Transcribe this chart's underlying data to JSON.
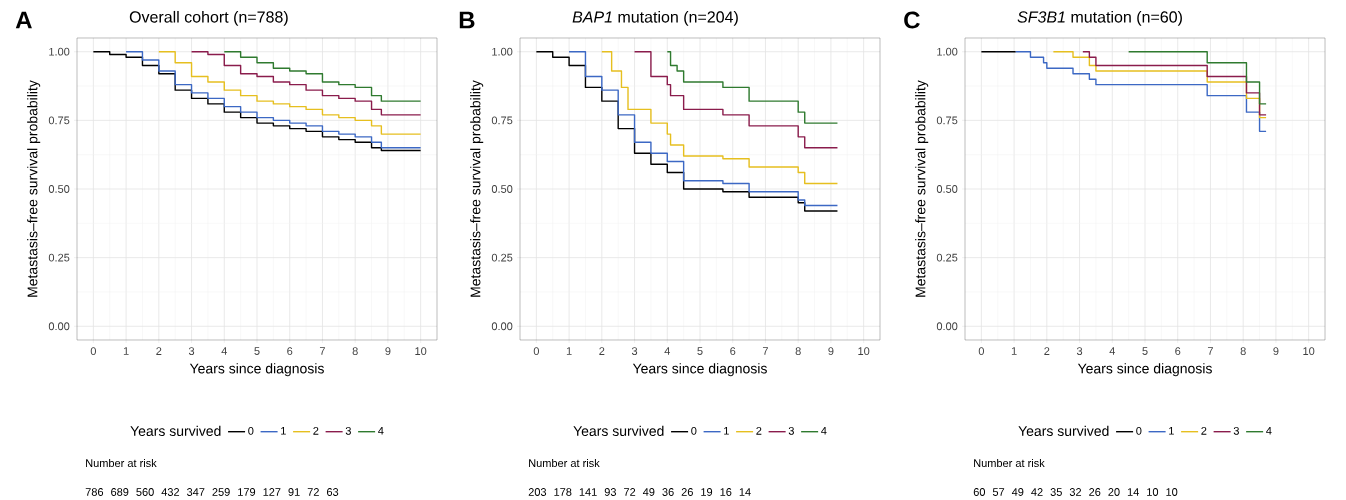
{
  "chart_data": [
    {
      "type": "step",
      "title": "Overall cohort (n=788)",
      "xlabel": "Years since diagnosis",
      "ylabel": "Metastasis–free survival probability",
      "legend_title": "Years survived",
      "legend": "bottom",
      "grid": true,
      "xlim": [
        -0.5,
        10.5
      ],
      "ylim": [
        -0.05,
        1.05
      ],
      "xticks": [
        0,
        1,
        2,
        3,
        4,
        5,
        6,
        7,
        8,
        9,
        10
      ],
      "yticks": [
        {
          "value": 0,
          "label": "0.00"
        },
        {
          "value": 0.25,
          "label": "0.25"
        },
        {
          "value": 0.5,
          "label": "0.50"
        },
        {
          "value": 0.75,
          "label": "0.75"
        },
        {
          "value": 1,
          "label": "1.00"
        }
      ],
      "annotations": [
        "A",
        "Number at risk",
        "786 689 560 432 347 259 179 127 91 72 63"
      ],
      "series": [
        {
          "name": "0",
          "color": "#000000",
          "x": [
            0,
            0.5,
            1,
            1.5,
            2,
            2.5,
            3,
            3.5,
            4,
            4.5,
            5,
            5.5,
            6,
            6.5,
            7,
            7.5,
            8,
            8.5,
            8.8,
            10
          ],
          "values": [
            1,
            0.99,
            0.98,
            0.95,
            0.92,
            0.86,
            0.83,
            0.81,
            0.78,
            0.76,
            0.74,
            0.73,
            0.72,
            0.71,
            0.69,
            0.68,
            0.67,
            0.65,
            0.64,
            0.64
          ]
        },
        {
          "name": "1",
          "color": "#3c68c4",
          "x": [
            1,
            1.5,
            2,
            2.5,
            3,
            3.5,
            4,
            4.5,
            5,
            5.5,
            6,
            6.5,
            7,
            7.5,
            8,
            8.5,
            8.8,
            10
          ],
          "values": [
            1,
            0.97,
            0.93,
            0.88,
            0.85,
            0.83,
            0.8,
            0.78,
            0.76,
            0.75,
            0.74,
            0.73,
            0.71,
            0.7,
            0.69,
            0.67,
            0.65,
            0.65
          ]
        },
        {
          "name": "2",
          "color": "#e6bf1f",
          "x": [
            2,
            2.5,
            3,
            3.5,
            4,
            4.5,
            5,
            5.5,
            6,
            6.5,
            7,
            7.5,
            8,
            8.5,
            8.8,
            10
          ],
          "values": [
            1,
            0.96,
            0.91,
            0.89,
            0.86,
            0.84,
            0.82,
            0.81,
            0.8,
            0.79,
            0.77,
            0.76,
            0.75,
            0.73,
            0.7,
            0.7
          ]
        },
        {
          "name": "3",
          "color": "#8a1c4c",
          "x": [
            3,
            3.5,
            4,
            4.5,
            5,
            5.5,
            6,
            6.5,
            7,
            7.5,
            8,
            8.5,
            8.8,
            10
          ],
          "values": [
            1,
            0.99,
            0.95,
            0.92,
            0.91,
            0.89,
            0.88,
            0.86,
            0.84,
            0.83,
            0.82,
            0.79,
            0.77,
            0.77
          ]
        },
        {
          "name": "4",
          "color": "#2f7a2f",
          "x": [
            4,
            4.5,
            5,
            5.5,
            6,
            6.5,
            7,
            7.5,
            8,
            8.5,
            8.8,
            10
          ],
          "values": [
            1,
            0.98,
            0.96,
            0.94,
            0.93,
            0.92,
            0.89,
            0.88,
            0.87,
            0.84,
            0.82,
            0.82
          ]
        }
      ]
    },
    {
      "type": "step",
      "title": "*BAP1* mutation (n=204)",
      "xlabel": "Years since diagnosis",
      "ylabel": "Metastasis–free survival probability",
      "legend_title": "Years survived",
      "legend": "bottom",
      "grid": true,
      "xlim": [
        -0.5,
        10.5
      ],
      "ylim": [
        -0.05,
        1.05
      ],
      "xticks": [
        0,
        1,
        2,
        3,
        4,
        5,
        6,
        7,
        8,
        9,
        10
      ],
      "yticks": [
        {
          "value": 0,
          "label": "0.00"
        },
        {
          "value": 0.25,
          "label": "0.25"
        },
        {
          "value": 0.5,
          "label": "0.50"
        },
        {
          "value": 0.75,
          "label": "0.75"
        },
        {
          "value": 1,
          "label": "1.00"
        }
      ],
      "annotations": [
        "B",
        "Number at risk",
        "203 178 141 93 72 49 36 26 19 16 14"
      ],
      "series": [
        {
          "name": "0",
          "color": "#000000",
          "x": [
            0,
            0.5,
            1,
            1.5,
            2,
            2.5,
            3,
            3.5,
            4,
            4.5,
            5.7,
            6.5,
            8,
            8.2,
            9.2
          ],
          "values": [
            1,
            0.98,
            0.95,
            0.87,
            0.82,
            0.72,
            0.63,
            0.59,
            0.56,
            0.5,
            0.49,
            0.47,
            0.45,
            0.42,
            0.42
          ]
        },
        {
          "name": "1",
          "color": "#3c68c4",
          "x": [
            1,
            1.5,
            2,
            2.5,
            3,
            3.5,
            4,
            4.5,
            5.7,
            6.5,
            8,
            8.2,
            9.2
          ],
          "values": [
            1,
            0.91,
            0.86,
            0.77,
            0.67,
            0.63,
            0.6,
            0.53,
            0.52,
            0.49,
            0.46,
            0.44,
            0.44
          ]
        },
        {
          "name": "2",
          "color": "#e6bf1f",
          "x": [
            2,
            2.3,
            2.6,
            2.8,
            3.5,
            4,
            4.1,
            4.5,
            5.7,
            6.5,
            8,
            8.2,
            9.2
          ],
          "values": [
            1,
            0.93,
            0.87,
            0.79,
            0.74,
            0.7,
            0.66,
            0.62,
            0.61,
            0.58,
            0.56,
            0.52,
            0.52
          ]
        },
        {
          "name": "3",
          "color": "#8a1c4c",
          "x": [
            3,
            3.5,
            4,
            4.1,
            4.5,
            5.7,
            6.5,
            8,
            8.2,
            9.2
          ],
          "values": [
            1,
            0.91,
            0.88,
            0.84,
            0.79,
            0.77,
            0.73,
            0.69,
            0.65,
            0.65
          ]
        },
        {
          "name": "4",
          "color": "#2f7a2f",
          "x": [
            4,
            4.1,
            4.3,
            4.5,
            5.7,
            6.5,
            8,
            8.2,
            9.2
          ],
          "values": [
            1,
            0.95,
            0.93,
            0.89,
            0.87,
            0.82,
            0.78,
            0.74,
            0.74
          ]
        }
      ]
    },
    {
      "type": "step",
      "title": "*SF3B1* mutation (n=60)",
      "xlabel": "Years since diagnosis",
      "ylabel": "Metastasis–free survival probability",
      "legend_title": "Years survived",
      "legend": "bottom",
      "grid": true,
      "xlim": [
        -0.5,
        10.5
      ],
      "ylim": [
        -0.05,
        1.05
      ],
      "xticks": [
        0,
        1,
        2,
        3,
        4,
        5,
        6,
        7,
        8,
        9,
        10
      ],
      "yticks": [
        {
          "value": 0,
          "label": "0.00"
        },
        {
          "value": 0.25,
          "label": "0.25"
        },
        {
          "value": 0.5,
          "label": "0.50"
        },
        {
          "value": 0.75,
          "label": "0.75"
        },
        {
          "value": 1,
          "label": "1.00"
        }
      ],
      "annotations": [
        "C",
        "Number at risk",
        "60 57 49 42 35 32 26 20 14 10 10"
      ],
      "series": [
        {
          "name": "0",
          "color": "#000000",
          "x": [
            0,
            1.05
          ],
          "values": [
            1,
            1
          ]
        },
        {
          "name": "1",
          "color": "#3c68c4",
          "x": [
            1.05,
            1.5,
            1.9,
            2,
            2.8,
            3.3,
            3.5,
            6.9,
            8.1,
            8.5,
            8.7
          ],
          "values": [
            1,
            0.98,
            0.96,
            0.94,
            0.92,
            0.9,
            0.88,
            0.84,
            0.78,
            0.71,
            0.71
          ]
        },
        {
          "name": "2",
          "color": "#e6bf1f",
          "x": [
            2.2,
            2.8,
            3.3,
            3.5,
            6.9,
            8.1,
            8.5,
            8.7
          ],
          "values": [
            1,
            0.98,
            0.95,
            0.93,
            0.89,
            0.83,
            0.76,
            0.76
          ]
        },
        {
          "name": "3",
          "color": "#8a1c4c",
          "x": [
            3.1,
            3.3,
            3.5,
            6.9,
            8.1,
            8.5,
            8.7
          ],
          "values": [
            1,
            0.98,
            0.95,
            0.91,
            0.85,
            0.77,
            0.77
          ]
        },
        {
          "name": "4",
          "color": "#2f7a2f",
          "x": [
            4.5,
            6.9,
            8.1,
            8.5,
            8.7
          ],
          "values": [
            1,
            0.96,
            0.89,
            0.81,
            0.81
          ]
        }
      ]
    }
  ]
}
